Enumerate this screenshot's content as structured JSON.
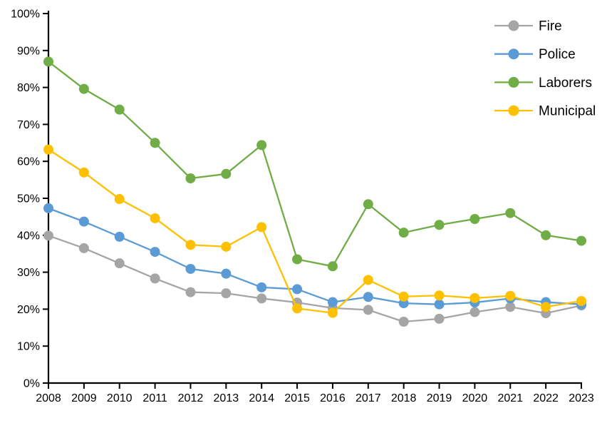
{
  "chart_data": {
    "type": "line",
    "title": "",
    "xlabel": "",
    "ylabel": "",
    "categories": [
      "2008",
      "2009",
      "2010",
      "2011",
      "2012",
      "2013",
      "2014",
      "2015",
      "2016",
      "2017",
      "2018",
      "2019",
      "2020",
      "2021",
      "2022",
      "2023"
    ],
    "series": [
      {
        "name": "Fire",
        "color": "#a5a5a5",
        "values": [
          39.9,
          36.5,
          32.4,
          28.3,
          24.6,
          24.3,
          22.9,
          21.8,
          20.3,
          19.8,
          16.6,
          17.4,
          19.2,
          20.6,
          18.9,
          21.0
        ]
      },
      {
        "name": "Police",
        "color": "#5b9bd5",
        "values": [
          47.3,
          43.7,
          39.6,
          35.5,
          30.9,
          29.6,
          25.9,
          25.4,
          21.9,
          23.3,
          21.6,
          21.3,
          21.8,
          22.9,
          21.9,
          21.3
        ]
      },
      {
        "name": "Laborers",
        "color": "#70ad47",
        "values": [
          87.0,
          79.6,
          74.0,
          65.0,
          55.4,
          56.6,
          64.4,
          33.5,
          31.6,
          48.4,
          40.7,
          42.8,
          44.4,
          46.0,
          40.0,
          38.5
        ]
      },
      {
        "name": "Municipal",
        "color": "#ffc000",
        "values": [
          63.2,
          57.0,
          49.8,
          44.6,
          37.4,
          36.9,
          42.2,
          20.2,
          19.0,
          27.9,
          23.4,
          23.7,
          23.0,
          23.6,
          20.6,
          22.2
        ]
      }
    ],
    "ylim": [
      0,
      100
    ],
    "ytick_step": 10,
    "ytick_labels": [
      "0%",
      "10%",
      "20%",
      "30%",
      "40%",
      "50%",
      "60%",
      "70%",
      "80%",
      "90%",
      "100%"
    ],
    "grid": false,
    "legend_position": "top-right",
    "marker_style": "circle",
    "axis_color": "#000000",
    "text_color": "#000000",
    "background_color": "#ffffff"
  }
}
